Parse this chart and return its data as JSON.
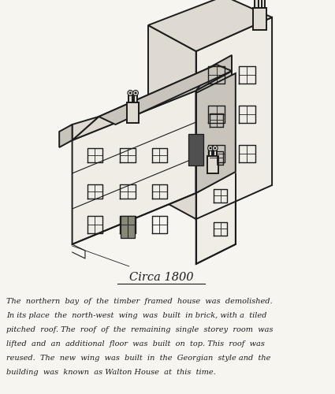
{
  "title": "Circa 1800",
  "desc_line1": "The  northern  bay  of  the  timber  framed  house  was  demolished.",
  "desc_line2": "In its place  the  north-west  wing  was  built  in brick, with a  tiled",
  "desc_line3": "pitched  roof. The  roof  of  the  remaining  single  storey  room  was",
  "desc_line4": "lifted  and  an  additional  floor  was  built  on  top. This  roof  was",
  "desc_line5": "reused.  The  new  wing  was  built  in  the  Georgian  style and  the",
  "desc_line6": "building  was  known  as Walton House  at  this  time.",
  "bg_color": "#f7f5f0",
  "line_color": "#1c1c1c",
  "face_white": "#f0ede6",
  "face_light": "#dedad2",
  "face_mid": "#c8c4bc",
  "face_dark": "#b0aca4",
  "roof_face": "#d4d0c8",
  "chimney_color": "#e0dcd4",
  "door_color": "#505050",
  "window_dark": "#404040"
}
